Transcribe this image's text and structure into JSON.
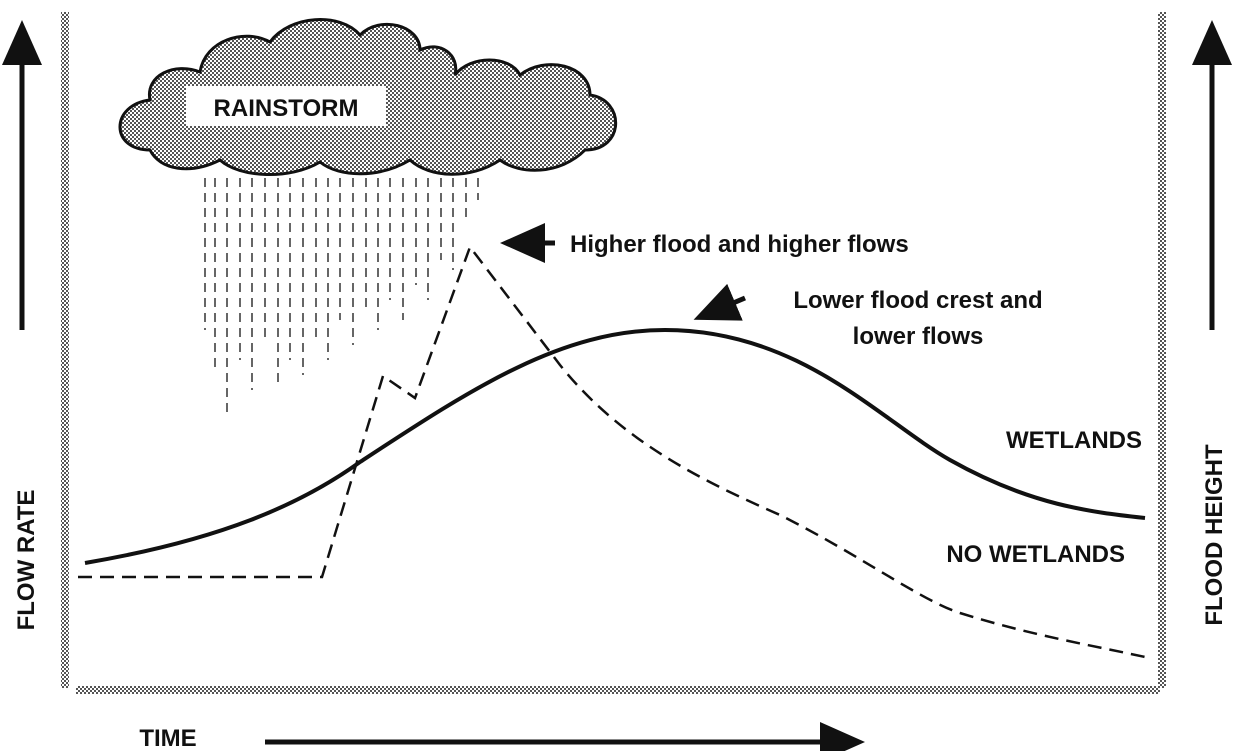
{
  "cloud_label": "RAINSTORM",
  "annotations": {
    "no_wetlands_peak": "Higher flood and higher flows",
    "wetlands_peak": [
      "Lower flood crest and",
      "lower flows"
    ]
  },
  "curve_labels": {
    "wetlands": "WETLANDS",
    "no_wetlands": "NO WETLANDS"
  },
  "axes": {
    "left": "FLOW RATE",
    "right": "FLOOD HEIGHT",
    "bottom": "TIME"
  }
}
